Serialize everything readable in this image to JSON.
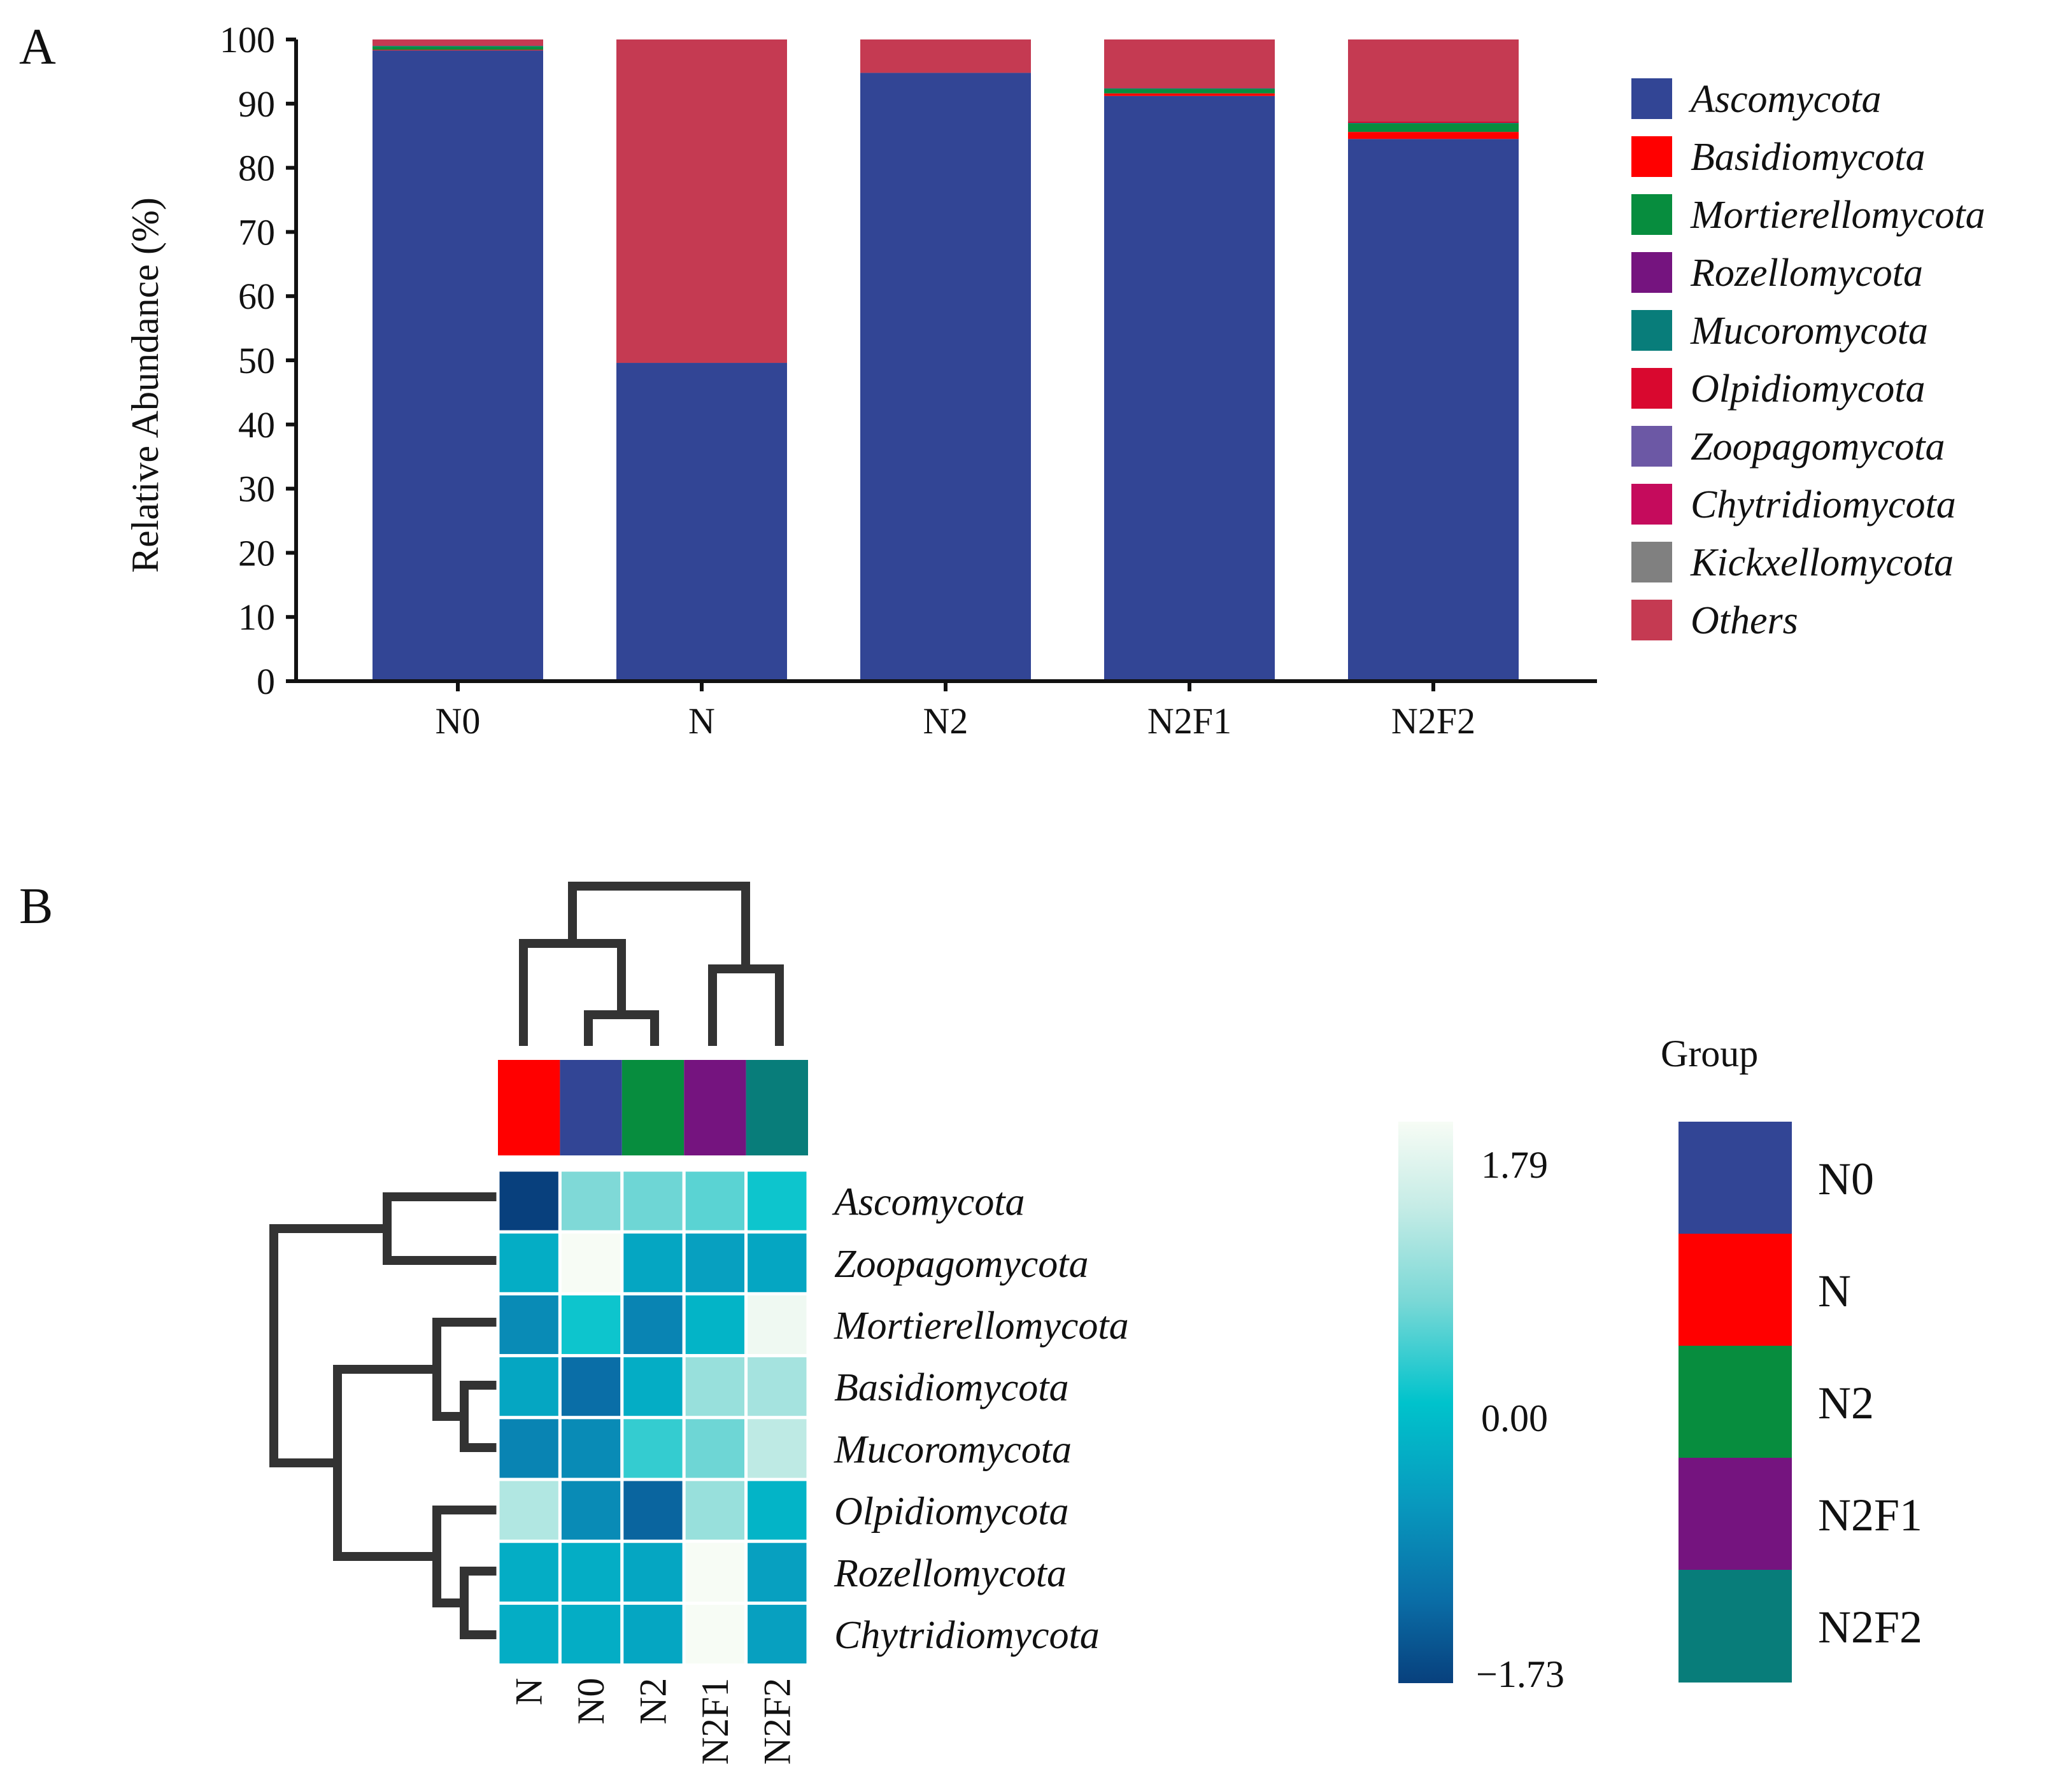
{
  "panel_a": {
    "label": "A",
    "chart_data": {
      "type": "bar",
      "stacked": true,
      "categories": [
        "N0",
        "N",
        "N2",
        "N2F1",
        "N2F2"
      ],
      "ylabel": "Relative Abundance (%)",
      "xlabel": "",
      "ylim": [
        0,
        100
      ],
      "yticks": [
        0,
        10,
        20,
        30,
        40,
        50,
        60,
        70,
        80,
        90,
        100
      ],
      "legend_position": "right",
      "series": [
        {
          "name": "Ascomycota",
          "color": "#324595",
          "values": [
            98.3,
            49.6,
            94.8,
            91.2,
            84.5
          ]
        },
        {
          "name": "Basidiomycota",
          "color": "#ff0000",
          "values": [
            0.1,
            0.0,
            0.0,
            0.4,
            1.1
          ]
        },
        {
          "name": "Mortierellomycota",
          "color": "#078d3e",
          "values": [
            0.5,
            0.0,
            0.0,
            0.7,
            1.3
          ]
        },
        {
          "name": "Rozellomycota",
          "color": "#75147f",
          "values": [
            0.0,
            0.0,
            0.0,
            0.0,
            0.0
          ]
        },
        {
          "name": "Mucoromycota",
          "color": "#087d7a",
          "values": [
            0.1,
            0.0,
            0.0,
            0.1,
            0.1
          ]
        },
        {
          "name": "Olpidiomycota",
          "color": "#d9082f",
          "values": [
            0.0,
            0.0,
            0.0,
            0.1,
            0.2
          ]
        },
        {
          "name": "Zoopagomycota",
          "color": "#6c58a5",
          "values": [
            0.0,
            0.0,
            0.0,
            0.0,
            0.0
          ]
        },
        {
          "name": "Chytridiomycota",
          "color": "#c50b5c",
          "values": [
            0.0,
            0.0,
            0.0,
            0.0,
            0.0
          ]
        },
        {
          "name": "Kickxellomycota",
          "color": "#808080",
          "values": [
            0.0,
            0.0,
            0.0,
            0.0,
            0.0
          ]
        },
        {
          "name": "Others",
          "color": "#c53a52",
          "values": [
            1.0,
            50.4,
            5.2,
            7.5,
            12.8
          ]
        }
      ]
    }
  },
  "panel_b": {
    "label": "B",
    "chart_data": {
      "type": "heatmap",
      "columns": [
        "N",
        "N0",
        "N2",
        "N2F1",
        "N2F2"
      ],
      "rows": [
        "Ascomycota",
        "Zoopagomycota",
        "Mortierellomycota",
        "Basidiomycota",
        "Mucoromycota",
        "Olpidiomycota",
        "Rozellomycota",
        "Chytridiomycota"
      ],
      "values": [
        [
          -1.73,
          0.7,
          0.6,
          0.5,
          0.1
        ],
        [
          -0.3,
          1.79,
          -0.4,
          -0.5,
          -0.4
        ],
        [
          -0.8,
          0.1,
          -0.9,
          -0.2,
          1.7
        ],
        [
          -0.4,
          -1.2,
          -0.3,
          0.9,
          1.0
        ],
        [
          -0.9,
          -0.8,
          0.3,
          0.6,
          1.2
        ],
        [
          1.1,
          -0.8,
          -1.3,
          0.9,
          -0.2
        ],
        [
          -0.3,
          -0.3,
          -0.4,
          1.79,
          -0.5
        ],
        [
          -0.3,
          -0.3,
          -0.4,
          1.79,
          -0.5
        ]
      ],
      "colorbar": {
        "min": -1.73,
        "mid": 0.0,
        "max": 1.79,
        "labels": [
          "1.79",
          "0.00",
          "−1.73"
        ]
      },
      "column_groups": [
        "N",
        "N0",
        "N2",
        "N2F1",
        "N2F2"
      ],
      "group_legend": {
        "title": "Group",
        "items": [
          {
            "name": "N0",
            "color": "#324595"
          },
          {
            "name": "N",
            "color": "#ff0000"
          },
          {
            "name": "N2",
            "color": "#078d3e"
          },
          {
            "name": "N2F1",
            "color": "#75147f"
          },
          {
            "name": "N2F2",
            "color": "#087d7a"
          }
        ]
      }
    }
  }
}
